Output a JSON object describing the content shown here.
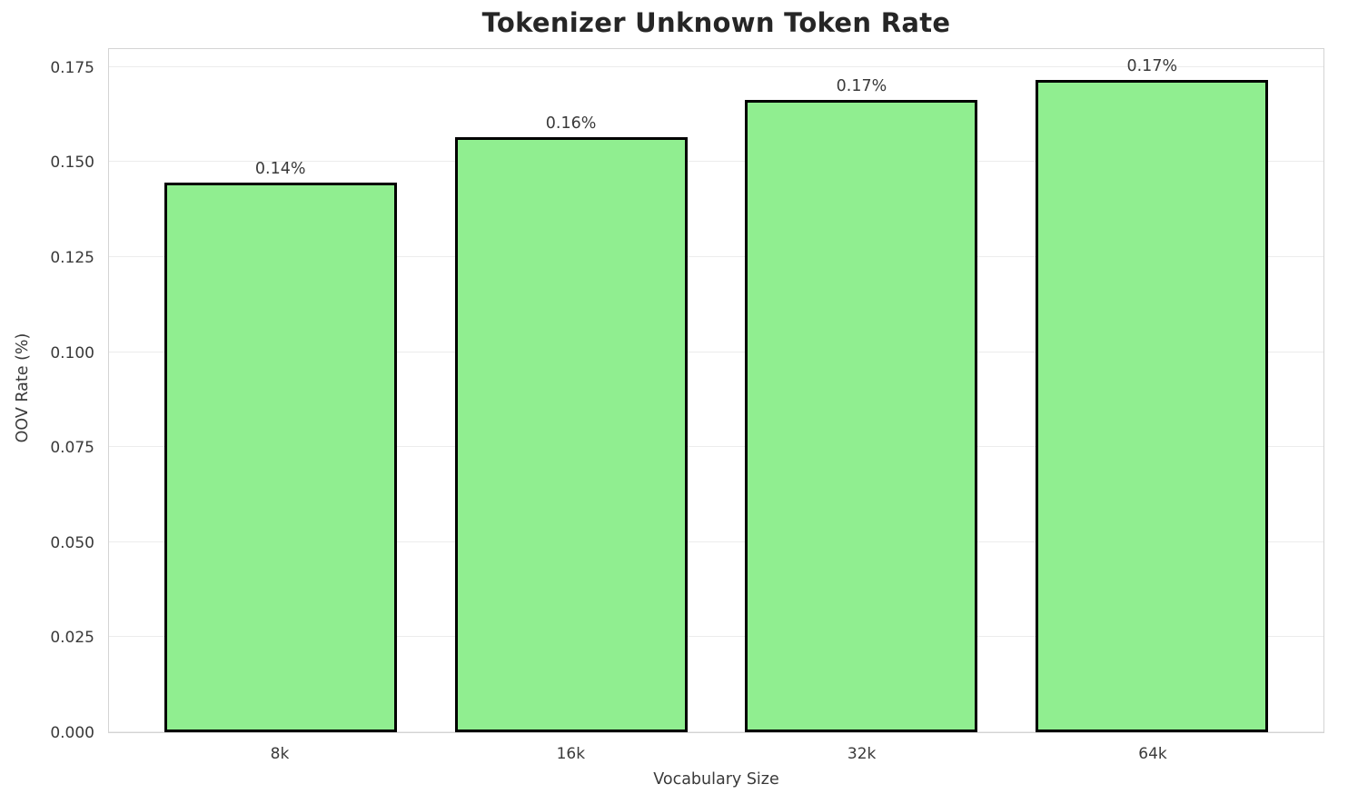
{
  "chart_data": {
    "type": "bar",
    "title": "Tokenizer Unknown Token Rate",
    "xlabel": "Vocabulary Size",
    "ylabel": "OOV Rate (%)",
    "categories": [
      "8k",
      "16k",
      "32k",
      "64k"
    ],
    "values": [
      0.1445,
      0.1565,
      0.1663,
      0.1716
    ],
    "bar_labels": [
      "0.14%",
      "0.16%",
      "0.17%",
      "0.17%"
    ],
    "yticks": [
      0.0,
      0.025,
      0.05,
      0.075,
      0.1,
      0.125,
      0.15,
      0.175
    ],
    "ytick_labels": [
      "0.000",
      "0.025",
      "0.050",
      "0.075",
      "0.100",
      "0.125",
      "0.150",
      "0.175"
    ],
    "ylim": [
      0,
      0.1802
    ],
    "grid": "horizontal",
    "legend": "none",
    "bar_color": "#90EE90",
    "bar_edge_color": "#000000",
    "grid_color": "#ececec",
    "spine_color": "#d4d4d4",
    "background_color": "#ffffff",
    "title_color": "#262626",
    "text_color": "#3a3a3a",
    "bar_width_fraction": 0.8
  }
}
